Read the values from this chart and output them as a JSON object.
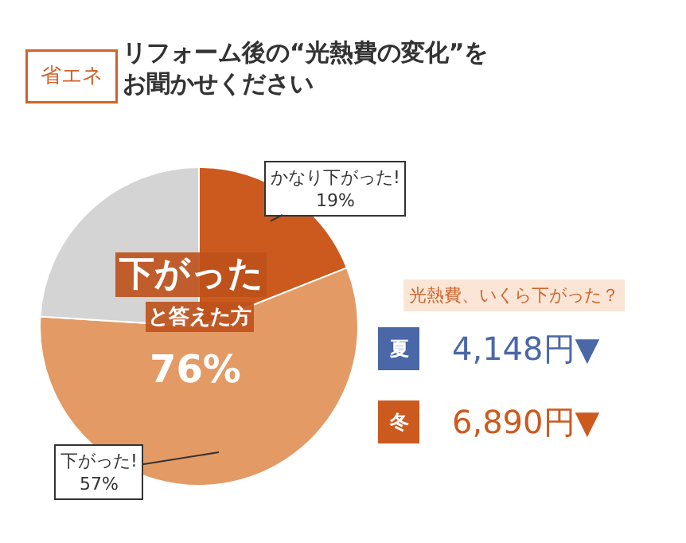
{
  "chart_data": {
    "type": "pie",
    "title": "リフォーム後の“光熱費の変化”をお聞かせください",
    "categories": [
      "かなり下がった!",
      "下がった!",
      null
    ],
    "values": [
      19,
      57,
      24
    ],
    "value_labels": [
      "19%",
      "57%",
      null
    ],
    "colors": [
      "#cc5a1e",
      "#e49a64",
      "#d4d4d4"
    ],
    "legend": false,
    "annotations": [
      "省エネ",
      "下がった",
      "と答えた方",
      "76%",
      "光熱費、いくら下がった？",
      "夏",
      "4,148円▼",
      "冬",
      "6,890円▼"
    ]
  }
}
